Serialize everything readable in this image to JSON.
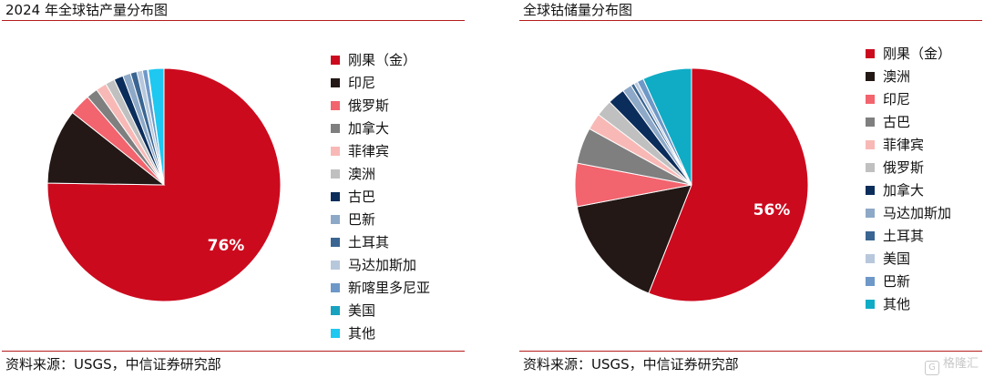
{
  "left": {
    "title": "2024 年全球钴产量分布图",
    "source": "资料来源：USGS，中信证券研究部",
    "chart_data": {
      "type": "pie",
      "title": "2024 年全球钴产量分布图",
      "labels": [
        "刚果（金）",
        "印尼",
        "俄罗斯",
        "加拿大",
        "菲律宾",
        "澳洲",
        "古巴",
        "巴新",
        "土耳其",
        "马达加斯加",
        "新喀里多尼亚",
        "美国",
        "其他"
      ],
      "values": [
        76,
        10.5,
        3,
        1.6,
        1.5,
        1.3,
        1.3,
        1.1,
        0.9,
        0.8,
        0.7,
        0.1,
        2.2
      ],
      "colors": [
        "#cc0a1e",
        "#231815",
        "#f2646e",
        "#7f7f7f",
        "#f8b9b6",
        "#c0c0c0",
        "#0b2d5b",
        "#8ea9c8",
        "#3a6592",
        "#b8c8dc",
        "#6e98c8",
        "#17a3c0",
        "#1ec8f0"
      ],
      "data_labels": [
        {
          "index": 0,
          "text": "76%"
        }
      ],
      "legend_position": "right"
    }
  },
  "right": {
    "title": "全球钴储量分布图",
    "source": "资料来源：USGS，中信证券研究部",
    "chart_data": {
      "type": "pie",
      "title": "全球钴储量分布图",
      "labels": [
        "刚果（金）",
        "澳洲",
        "印尼",
        "古巴",
        "菲律宾",
        "俄罗斯",
        "加拿大",
        "马达加斯加",
        "土耳其",
        "美国",
        "巴新",
        "其他"
      ],
      "values": [
        56,
        16,
        6,
        5,
        2.3,
        2.3,
        2.4,
        1.3,
        0.5,
        0.5,
        0.9,
        6.8
      ],
      "colors": [
        "#cc0a1e",
        "#231815",
        "#f2646e",
        "#7f7f7f",
        "#f8b9b6",
        "#c0c0c0",
        "#0b2d5b",
        "#8ea9c8",
        "#3a6592",
        "#b8c8dc",
        "#6e98c8",
        "#10acc6"
      ],
      "data_labels": [
        {
          "index": 0,
          "text": "56%"
        }
      ],
      "legend_position": "right"
    }
  },
  "watermark": {
    "logo_text": "G",
    "text": "格隆汇"
  }
}
